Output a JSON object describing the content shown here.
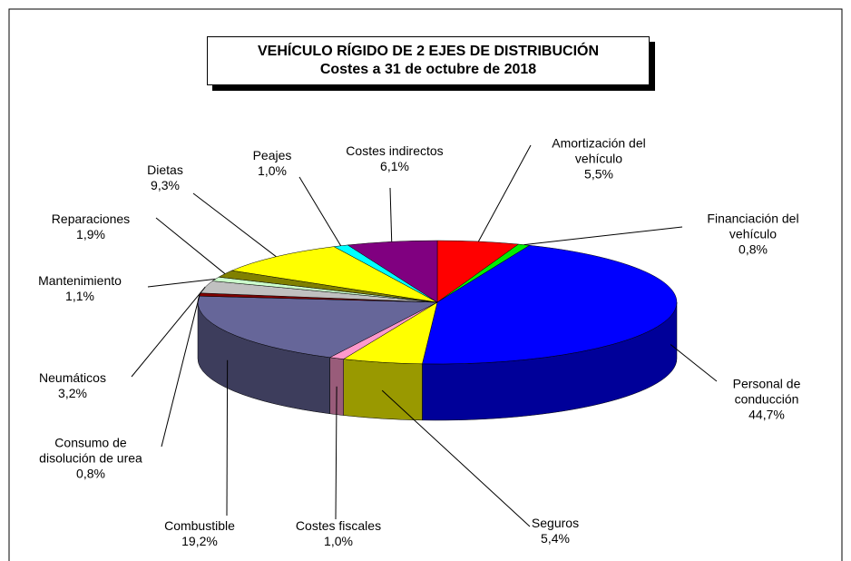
{
  "chart_data": {
    "type": "pie3d",
    "title": "VEHÍCULO RÍGIDO DE 2 EJES DE DISTRIBUCIÓN",
    "subtitle": "Costes a 31 de octubre de 2018",
    "categories": [
      "Amortización del vehículo",
      "Financiación del vehículo",
      "Personal de conducción",
      "Seguros",
      "Costes fiscales",
      "Combustible",
      "Consumo de disolución de urea",
      "Neumáticos",
      "Mantenimiento",
      "Reparaciones",
      "Dietas",
      "Peajes",
      "Costes indirectos"
    ],
    "values": [
      5.5,
      0.8,
      44.7,
      5.4,
      1.0,
      19.2,
      0.8,
      3.2,
      1.1,
      1.9,
      9.3,
      1.0,
      6.1
    ],
    "value_labels": [
      "5,5%",
      "0,8%",
      "44,7%",
      "5,4%",
      "1,0%",
      "19,2%",
      "0,8%",
      "3,2%",
      "1,1%",
      "1,9%",
      "9,3%",
      "1,0%",
      "6,1%"
    ],
    "colors": [
      "#ff0000",
      "#00ee00",
      "#0000ff",
      "#ffff00",
      "#ff99cc",
      "#666699",
      "#800000",
      "#c0c0c0",
      "#ccffcc",
      "#808000",
      "#ffff00",
      "#00ffff",
      "#800080"
    ]
  }
}
